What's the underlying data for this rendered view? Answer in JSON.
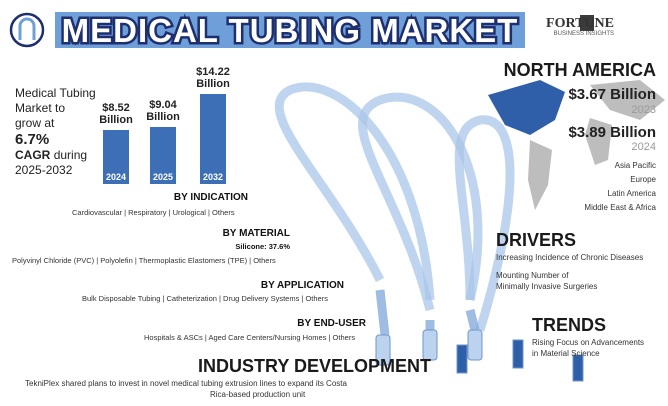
{
  "header": {
    "title": "MEDICAL TUBING MARKET",
    "logo_name": "FORTUNE",
    "logo_tagline": "BUSINESS INSIGHTS"
  },
  "growth": {
    "lines": [
      "Medical Tubing",
      "Market to",
      "grow at"
    ],
    "cagr": "6.7%",
    "cagr_label": "CAGR",
    "tail": [
      "during",
      "2025-2032"
    ]
  },
  "chart_data": {
    "type": "bar",
    "categories": [
      "2024",
      "2025",
      "2032"
    ],
    "values": [
      8.52,
      9.04,
      14.22
    ],
    "value_labels": [
      "$8.52 Billion",
      "$9.04 Billion",
      "$14.22 Billion"
    ],
    "color": "#3d6fb6"
  },
  "segments": [
    {
      "title": "BY INDICATION",
      "items": "Cardiovascular  |  Respiratory  |  Urological  |  Others"
    },
    {
      "title": "BY MATERIAL",
      "highlight": "Silicone: 37.6%",
      "items": "Polyvinyl Chloride (PVC)  |  Polyolefin  |  Thermoplastic Elastomers (TPE)  |  Others"
    },
    {
      "title": "BY APPLICATION",
      "items": "Bulk Disposable Tubing  |  Catheterization  |  Drug Delivery Systems  |  Others"
    },
    {
      "title": "BY END-USER",
      "items": "Hospitals & ASCs  |  Aged Care Centers/Nursing Homes  |  Others"
    }
  ],
  "industry_development": {
    "title": "INDUSTRY DEVELOPMENT",
    "text": [
      "TekniPlex shared plans to invest in novel medical tubing extrusion lines to expand its Costa",
      "Rica-based production unit"
    ]
  },
  "north_america": {
    "title": "NORTH AMERICA",
    "figures": [
      {
        "value": "$3.67 Billion",
        "year": "2023"
      },
      {
        "value": "$3.89 Billion",
        "year": "2024"
      }
    ],
    "regions": [
      "Asia Pacific",
      "Europe",
      "Latin America",
      "Middle East & Africa"
    ]
  },
  "drivers": {
    "title": "DRIVERS",
    "items": [
      [
        "Increasing Incidence of Chronic Diseases"
      ],
      [
        "Mounting Number of",
        "Minimally Invasive Surgeries"
      ]
    ]
  },
  "trends": {
    "title": "TRENDS",
    "items": [
      "Rising Focus on Advancements",
      "in Material Science"
    ]
  }
}
